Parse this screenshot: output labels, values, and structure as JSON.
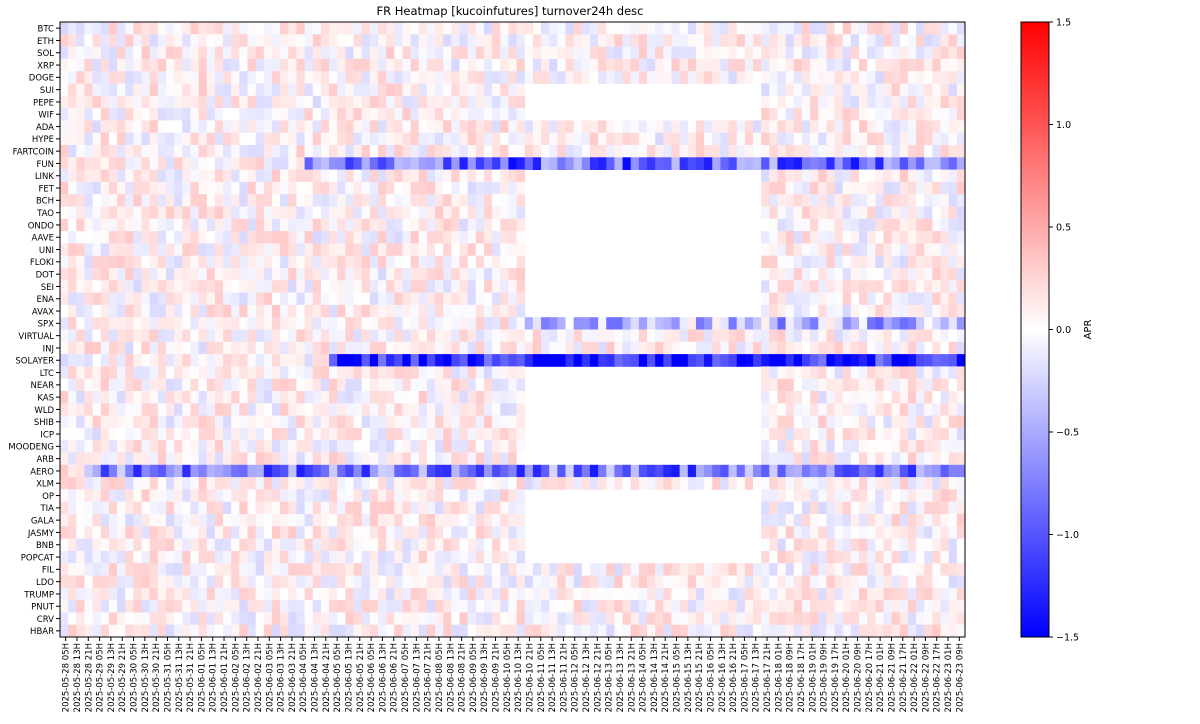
{
  "chart_data": {
    "type": "heatmap",
    "title": "FR Heatmap [kucoinfutures] turnover24h desc",
    "ylabel_colorbar": "APR",
    "colormap": "bwr",
    "color_range": [
      -1.5,
      1.5
    ],
    "colorbar_ticks": [
      1.5,
      1.0,
      0.5,
      0.0,
      -0.5,
      -1.0,
      -1.5
    ],
    "colorbar_tick_labels": [
      "1.5",
      "1.0",
      "0.5",
      "0.0",
      "−0.5",
      "−1.0",
      "−1.5"
    ],
    "rows": [
      "BTC",
      "ETH",
      "SOL",
      "XRP",
      "DOGE",
      "SUI",
      "PEPE",
      "WIF",
      "ADA",
      "HYPE",
      "FARTCOIN",
      "FUN",
      "LINK",
      "FET",
      "BCH",
      "TAO",
      "ONDO",
      "AAVE",
      "UNI",
      "FLOKI",
      "DOT",
      "SEI",
      "ENA",
      "AVAX",
      "SPX",
      "VIRTUAL",
      "INJ",
      "SOLAYER",
      "LTC",
      "NEAR",
      "KAS",
      "WLD",
      "SHIB",
      "ICP",
      "MOODENG",
      "ARB",
      "AERO",
      "XLM",
      "OP",
      "TIA",
      "GALA",
      "JASMY",
      "BNB",
      "POPCAT",
      "FIL",
      "LDO",
      "TRUMP",
      "PNUT",
      "CRV",
      "HBAR"
    ],
    "column_count": 111,
    "x_tick_labels": [
      "2025-05-28 05H",
      "2025-05-28 13H",
      "2025-05-28 21H",
      "2025-05-29 05H",
      "2025-05-29 13H",
      "2025-05-29 21H",
      "2025-05-30 05H",
      "2025-05-30 13H",
      "2025-05-30 21H",
      "2025-05-31 05H",
      "2025-05-31 13H",
      "2025-05-31 21H",
      "2025-06-01 05H",
      "2025-06-01 13H",
      "2025-06-01 21H",
      "2025-06-02 05H",
      "2025-06-02 13H",
      "2025-06-02 21H",
      "2025-06-03 05H",
      "2025-06-03 13H",
      "2025-06-03 21H",
      "2025-06-04 05H",
      "2025-06-04 13H",
      "2025-06-04 21H",
      "2025-06-05 05H",
      "2025-06-05 13H",
      "2025-06-05 21H",
      "2025-06-06 05H",
      "2025-06-06 13H",
      "2025-06-06 21H",
      "2025-06-07 05H",
      "2025-06-07 13H",
      "2025-06-07 21H",
      "2025-06-08 05H",
      "2025-06-08 13H",
      "2025-06-08 21H",
      "2025-06-09 05H",
      "2025-06-09 13H",
      "2025-06-09 21H",
      "2025-06-10 05H",
      "2025-06-10 13H",
      "2025-06-10 21H",
      "2025-06-11 05H",
      "2025-06-11 13H",
      "2025-06-11 21H",
      "2025-06-12 05H",
      "2025-06-12 13H",
      "2025-06-12 21H",
      "2025-06-13 05H",
      "2025-06-13 13H",
      "2025-06-13 21H",
      "2025-06-14 05H",
      "2025-06-14 13H",
      "2025-06-14 21H",
      "2025-06-15 05H",
      "2025-06-15 13H",
      "2025-06-15 21H",
      "2025-06-16 05H",
      "2025-06-16 13H",
      "2025-06-16 21H",
      "2025-06-17 05H",
      "2025-06-17 13H",
      "2025-06-17 21H",
      "2025-06-18 01H",
      "2025-06-18 09H",
      "2025-06-18 17H",
      "2025-06-19 01H",
      "2025-06-19 09H",
      "2025-06-19 17H",
      "2025-06-20 01H",
      "2025-06-20 09H",
      "2025-06-20 17H",
      "2025-06-21 01H",
      "2025-06-21 09H",
      "2025-06-21 17H",
      "2025-06-22 01H",
      "2025-06-22 09H",
      "2025-06-22 17H",
      "2025-06-23 01H",
      "2025-06-23 09H"
    ],
    "x_tick_columns": [
      0,
      1,
      2,
      3,
      4,
      5,
      6,
      7,
      8,
      9,
      10,
      11,
      12,
      13,
      14,
      15,
      16,
      17,
      18,
      19,
      20,
      21,
      22,
      23,
      24,
      25,
      26,
      27,
      28,
      29,
      30,
      31,
      32,
      33,
      34,
      35,
      36,
      37,
      38,
      39,
      40,
      41,
      42,
      43,
      44,
      45,
      46,
      47,
      48,
      49,
      50,
      51,
      52,
      53,
      54,
      55,
      56,
      57,
      58,
      59,
      60,
      61,
      62,
      63,
      64,
      65,
      66,
      67,
      68,
      69,
      70,
      71,
      72,
      73,
      74,
      75,
      76,
      77,
      78,
      79
    ],
    "missing_data": [
      {
        "rows": [
          "SUI",
          "PEPE",
          "WIF"
        ],
        "from_column": 57,
        "to_column": 85
      },
      {
        "rows": [
          "LINK",
          "FET",
          "BCH",
          "TAO",
          "ONDO",
          "AAVE",
          "UNI",
          "FLOKI",
          "DOT",
          "SEI",
          "ENA",
          "AVAX"
        ],
        "from_column": 57,
        "to_column": 85
      },
      {
        "rows": [
          "LTC",
          "NEAR",
          "KAS",
          "WLD",
          "SHIB",
          "ICP",
          "MOODENG",
          "ARB"
        ],
        "from_column": 57,
        "to_column": 85
      },
      {
        "rows": [
          "OP",
          "TIA",
          "GALA",
          "JASMY",
          "BNB",
          "POPCAT"
        ],
        "from_column": 57,
        "to_column": 85
      }
    ],
    "strong_negative_bands": [
      {
        "row": "FUN",
        "from_column": 30,
        "to_column": 110,
        "typical_value": -0.9
      },
      {
        "row": "SOLAYER",
        "from_column": 33,
        "to_column": 110,
        "typical_value": -1.3
      },
      {
        "row": "AERO",
        "from_column": 3,
        "to_column": 110,
        "typical_value": -0.8
      },
      {
        "row": "SPX",
        "from_column": 57,
        "to_column": 110,
        "typical_value": -0.4
      }
    ]
  }
}
